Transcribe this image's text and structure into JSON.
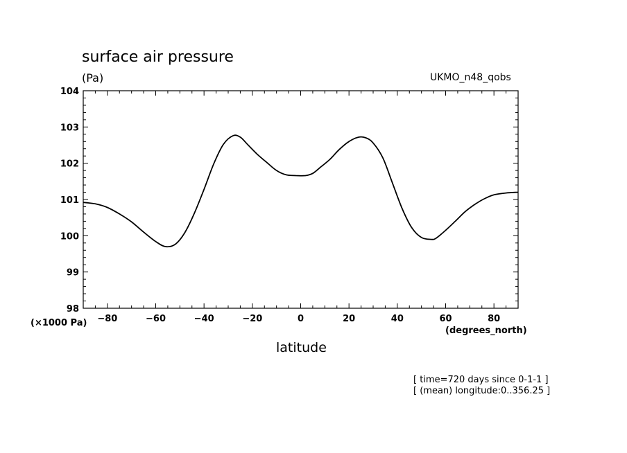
{
  "chart_data": {
    "type": "line",
    "title": "surface air pressure",
    "ylabel": "(Pa)",
    "model_label": "UKMO_n48_qobs",
    "y_scale_label": "(×1000 Pa)",
    "xlabel": "latitude",
    "x_units": "(degrees_north)",
    "notes": [
      "[ time=720 days since 0-1-1 ]",
      "[ (mean) longitude:0..356.25 ]"
    ],
    "xlim": [
      -90,
      90
    ],
    "ylim": [
      98,
      104
    ],
    "xticks": [
      -80,
      -60,
      -40,
      -20,
      0,
      20,
      40,
      60,
      80
    ],
    "xtick_labels": [
      "−80",
      "−60",
      "−40",
      "−20",
      "0",
      "20",
      "40",
      "60",
      "80"
    ],
    "yticks": [
      98,
      99,
      100,
      101,
      102,
      103,
      104
    ],
    "ytick_labels": [
      "98",
      "99",
      "100",
      "101",
      "102",
      "103",
      "104"
    ],
    "series": [
      {
        "name": "surface air pressure",
        "x": [
          -90,
          -85,
          -80,
          -75,
          -70,
          -65,
          -60,
          -56,
          -52,
          -48,
          -44,
          -40,
          -36,
          -32,
          -28,
          -25,
          -22,
          -18,
          -14,
          -10,
          -6,
          -2,
          2,
          5,
          8,
          12,
          16,
          20,
          24,
          27,
          30,
          34,
          38,
          42,
          46,
          50,
          54,
          56,
          60,
          64,
          68,
          72,
          76,
          80,
          85,
          90
        ],
        "y": [
          100.92,
          100.88,
          100.78,
          100.6,
          100.38,
          100.1,
          99.84,
          99.7,
          99.76,
          100.08,
          100.62,
          101.28,
          101.98,
          102.52,
          102.76,
          102.72,
          102.52,
          102.25,
          102.02,
          101.8,
          101.68,
          101.66,
          101.66,
          101.72,
          101.88,
          102.1,
          102.38,
          102.6,
          102.72,
          102.7,
          102.56,
          102.15,
          101.45,
          100.75,
          100.22,
          99.95,
          99.9,
          99.93,
          100.15,
          100.4,
          100.66,
          100.86,
          101.02,
          101.13,
          101.18,
          101.2
        ]
      }
    ]
  }
}
